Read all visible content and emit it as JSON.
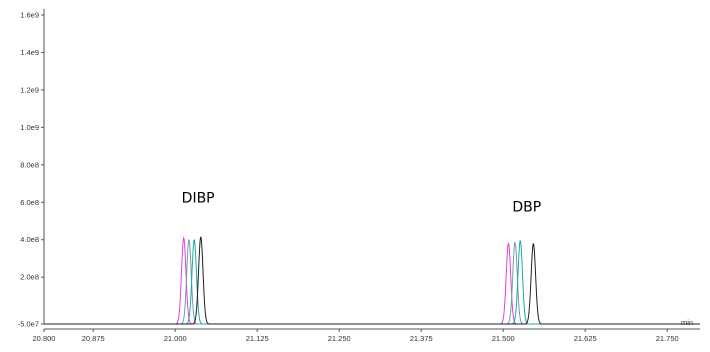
{
  "chart_data": {
    "type": "line",
    "title": "",
    "xlabel": "min",
    "ylabel": "",
    "xlim": [
      20.8,
      21.8
    ],
    "ylim": [
      -50000000,
      1600000000
    ],
    "x_ticks": [
      20.8,
      20.875,
      21.0,
      21.125,
      21.25,
      21.375,
      21.5,
      21.625,
      21.75
    ],
    "x_tick_labels": [
      "20.800",
      "20.875",
      "21.000",
      "21.125",
      "21.250",
      "21.375",
      "21.500",
      "21.625",
      "21.750"
    ],
    "y_ticks": [
      -50000000,
      200000000,
      400000000,
      600000000,
      800000000,
      1000000000,
      1200000000,
      1400000000,
      1600000000
    ],
    "y_tick_labels": [
      "-5.0e7",
      "2.0e8",
      "4.0e8",
      "6.0e8",
      "8.0e8",
      "1.0e9",
      "1.2e9",
      "1.4e9",
      "1.6e9"
    ],
    "grid": false,
    "baseline": -50000000,
    "peak_width_min": 0.0075,
    "series": [
      {
        "color": "#e040e0",
        "peaks": [
          {
            "x": 21.013,
            "y": 410000000
          },
          {
            "x": 21.508,
            "y": 380000000
          }
        ]
      },
      {
        "color": "#6f9fa8",
        "peaks": [
          {
            "x": 21.021,
            "y": 400000000
          },
          {
            "x": 21.518,
            "y": 385000000
          }
        ]
      },
      {
        "color": "#20a8a0",
        "peaks": [
          {
            "x": 21.029,
            "y": 400000000
          },
          {
            "x": 21.526,
            "y": 395000000
          }
        ]
      },
      {
        "color": "#202020",
        "peaks": [
          {
            "x": 21.039,
            "y": 415000000
          },
          {
            "x": 21.546,
            "y": 380000000
          }
        ]
      }
    ],
    "annotations": [
      {
        "text": "DIBP",
        "x": 21.035,
        "y": 600000000
      },
      {
        "text": "DBP",
        "x": 21.536,
        "y": 550000000
      }
    ]
  }
}
